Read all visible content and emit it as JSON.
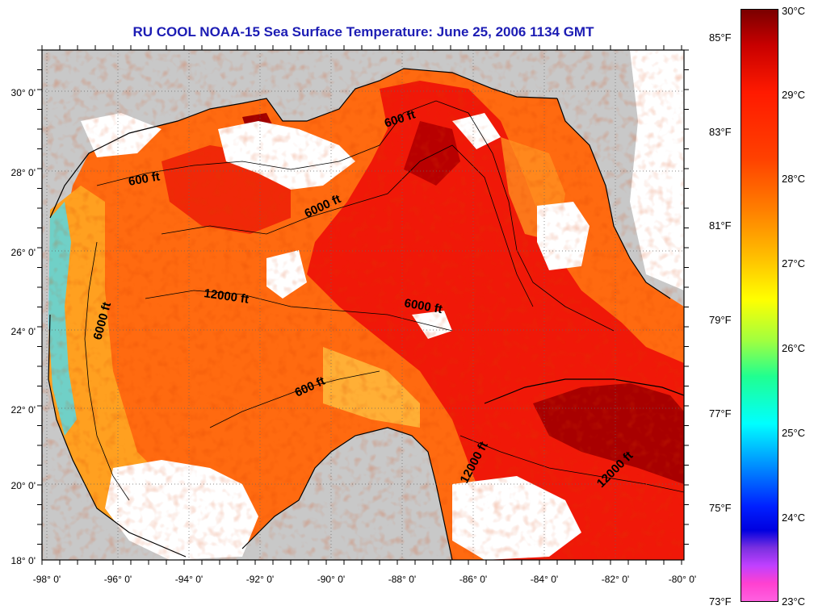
{
  "title": "RU COOL  NOAA-15  Sea Surface Temperature:  June 25, 2006 1134 GMT",
  "map": {
    "lon_ticks": [
      "-98° 0'",
      "-96° 0'",
      "-94° 0'",
      "-92° 0'",
      "-90° 0'",
      "-88° 0'",
      "-86° 0'",
      "-84° 0'",
      "-82° 0'",
      "-80° 0'"
    ],
    "lat_ticks": [
      "30° 0'",
      "28° 0'",
      "26° 0'",
      "24° 0'",
      "22° 0'",
      "20° 0'",
      "18° 0'"
    ],
    "contour_labels": [
      "600 ft",
      "600 ft",
      "600 ft",
      "6000 ft",
      "6000 ft",
      "6000 ft",
      "12000 ft",
      "12000 ft",
      "12000 ft"
    ],
    "colors": {
      "land": "#c8c8c8",
      "cloud": "#ffffff",
      "frame": "#000000",
      "grid": "#666666"
    }
  },
  "colorbar": {
    "celsius_labels": [
      "30°C",
      "29°C",
      "28°C",
      "27°C",
      "26°C",
      "25°C",
      "24°C",
      "23°C"
    ],
    "fahrenheit_labels": [
      "85°F",
      "83°F",
      "81°F",
      "79°F",
      "77°F",
      "75°F",
      "73°F"
    ]
  }
}
